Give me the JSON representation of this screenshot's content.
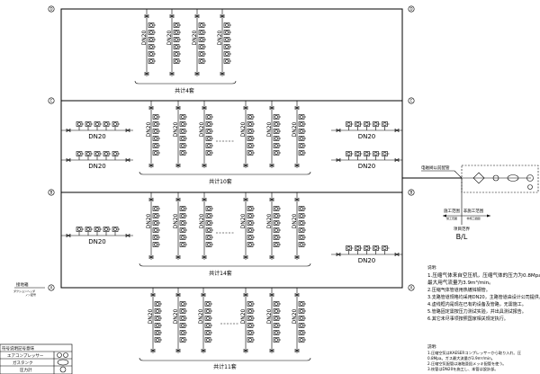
{
  "axes": {
    "left": [
      "D",
      "C",
      "B",
      "A"
    ],
    "right": [
      "D",
      "C",
      "B",
      "A"
    ]
  },
  "sections": [
    {
      "total_label": "共计4套",
      "riser_count": 4,
      "pipe_label": "DN20"
    },
    {
      "total_label": "共计10套",
      "riser_count": 6,
      "pipe_label": "DN20",
      "branch_label": "DN20"
    },
    {
      "total_label": "共计14套",
      "riser_count": 6,
      "pipe_label": "DN20",
      "branch_label": "DN20"
    },
    {
      "total_label": "共计11套",
      "riser_count": 6,
      "pipe_label": "DN20"
    }
  ],
  "right_equipment": {
    "callout": "电磁阀以前配管",
    "scope_left": "施工范围",
    "scope_left_sub": "施工范囲",
    "scope_right": "非施工范围",
    "scope_right_sub": "非施工範囲",
    "boundary": "项目范界",
    "boundary_code": "B/L"
  },
  "left_callout": {
    "title": "接地箱",
    "sub1": "ダクションヘッダ",
    "sub2": "ノン配号"
  },
  "notes_cn": {
    "title": "说明:",
    "lines": [
      "1.压缩气体来自空压机，压缩气体的压力为0.8Mpa。",
      "最大用气流量为3.9m³/min。",
      "2.压缩气体管道用热镀锌钢管。",
      "3.支路管道规格均采用DN20，主路管道由设计公司提供。",
      "4.虚线框内是现在已有的设备及管路，无需施工。",
      "5.管路固定需按压力测试实验，并出具测试报告。",
      "6.其它未尽事项按照国家相关规定执行。"
    ]
  },
  "notes_jp": {
    "title": "説明:",
    "lines": [
      "1.圧縮空気はKAESERコンプレッサーから取り入れ、圧",
      "0.8Mpa。ガス最大流量が3.9m³/min。",
      "2.圧縮空気配管は溶融亜鉛メッキ配管を使う。",
      "3.枝管はDN20を施工し、本管は設計部。"
    ]
  },
  "legend": {
    "header": "符号说明記号意味",
    "rows": [
      {
        "label": "エアコンプレッサー",
        "icon": "air-compressor-icon"
      },
      {
        "label": "ガスタンク",
        "icon": "gas-tank-icon"
      },
      {
        "label": "圧力計",
        "icon": "pressure-gauge-icon"
      }
    ]
  }
}
